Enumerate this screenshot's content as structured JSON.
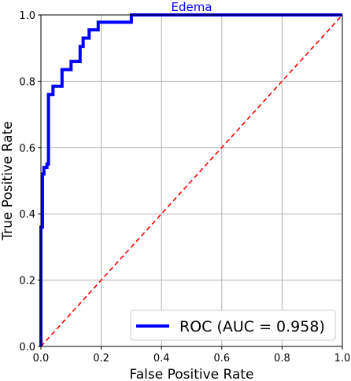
{
  "chart_data": {
    "type": "line",
    "title": "Edema",
    "xlabel": "False Positive Rate",
    "ylabel": "True Positive Rate",
    "xlim": [
      0.0,
      1.0
    ],
    "ylim": [
      0.0,
      1.0
    ],
    "xticks": [
      "0.0",
      "0.2",
      "0.4",
      "0.6",
      "0.8",
      "1.0"
    ],
    "yticks": [
      "0.0",
      "0.2",
      "0.4",
      "0.6",
      "0.8",
      "1.0"
    ],
    "grid": true,
    "legend_position": "lower-right",
    "series": [
      {
        "name": "ROC (AUC = 0.958)",
        "color": "#0000ff",
        "style": "solid",
        "x": [
          0.0,
          0.0,
          0.005,
          0.005,
          0.01,
          0.01,
          0.02,
          0.02,
          0.025,
          0.025,
          0.04,
          0.04,
          0.07,
          0.07,
          0.1,
          0.1,
          0.13,
          0.13,
          0.14,
          0.14,
          0.16,
          0.16,
          0.19,
          0.19,
          0.3,
          0.3,
          1.0
        ],
        "y": [
          0.0,
          0.36,
          0.36,
          0.52,
          0.52,
          0.54,
          0.54,
          0.55,
          0.55,
          0.76,
          0.76,
          0.785,
          0.785,
          0.835,
          0.835,
          0.86,
          0.86,
          0.905,
          0.905,
          0.93,
          0.93,
          0.955,
          0.955,
          0.978,
          0.978,
          1.0,
          1.0
        ]
      },
      {
        "name": "",
        "color": "#ff0000",
        "style": "dashed",
        "x": [
          0.0,
          1.0
        ],
        "y": [
          0.0,
          1.0
        ]
      }
    ]
  }
}
